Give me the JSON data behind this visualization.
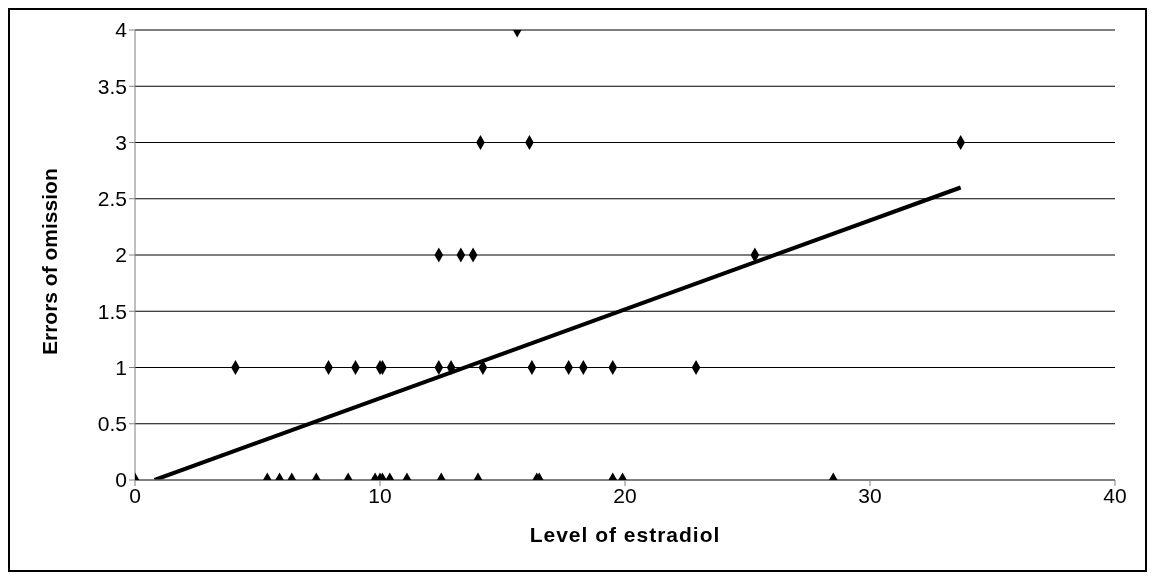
{
  "chart_data": {
    "type": "scatter",
    "xlabel": "Level of estradiol",
    "ylabel": "Errors of omission",
    "xlim": [
      0,
      40
    ],
    "xticks": [
      0,
      10,
      20,
      30,
      40
    ],
    "ylim": [
      0,
      4
    ],
    "yticks": [
      0,
      0.5,
      1,
      1.5,
      2,
      2.5,
      3,
      3.5,
      4
    ],
    "grid": "y",
    "marker": "diamond",
    "series": [
      {
        "color": "#000000",
        "x": [
          0,
          5.4,
          5.9,
          6.4,
          7.4,
          8.7,
          9.8,
          10.0,
          10.1,
          10.4,
          11.1,
          12.5,
          14.0,
          16.4,
          16.5,
          19.5,
          19.9,
          28.5,
          4.1,
          7.9,
          9.0,
          10.0,
          10.1,
          12.4,
          12.9,
          14.2,
          16.2,
          17.7,
          18.3,
          19.5,
          22.9,
          12.4,
          13.3,
          13.8,
          25.3,
          14.1,
          16.1,
          33.7,
          15.6
        ],
        "values": [
          0,
          0,
          0,
          0,
          0,
          0,
          0,
          0,
          0,
          0,
          0,
          0,
          0,
          0,
          0,
          0,
          0,
          0,
          1,
          1,
          1,
          1,
          1,
          1,
          1,
          1,
          1,
          1,
          1,
          1,
          1,
          2,
          2,
          2,
          2,
          3,
          3,
          3,
          4
        ]
      },
      {
        "type": "line",
        "color": "#000000",
        "x": [
          0.8,
          33.7
        ],
        "values": [
          0,
          2.6
        ],
        "marker": "none"
      }
    ]
  }
}
